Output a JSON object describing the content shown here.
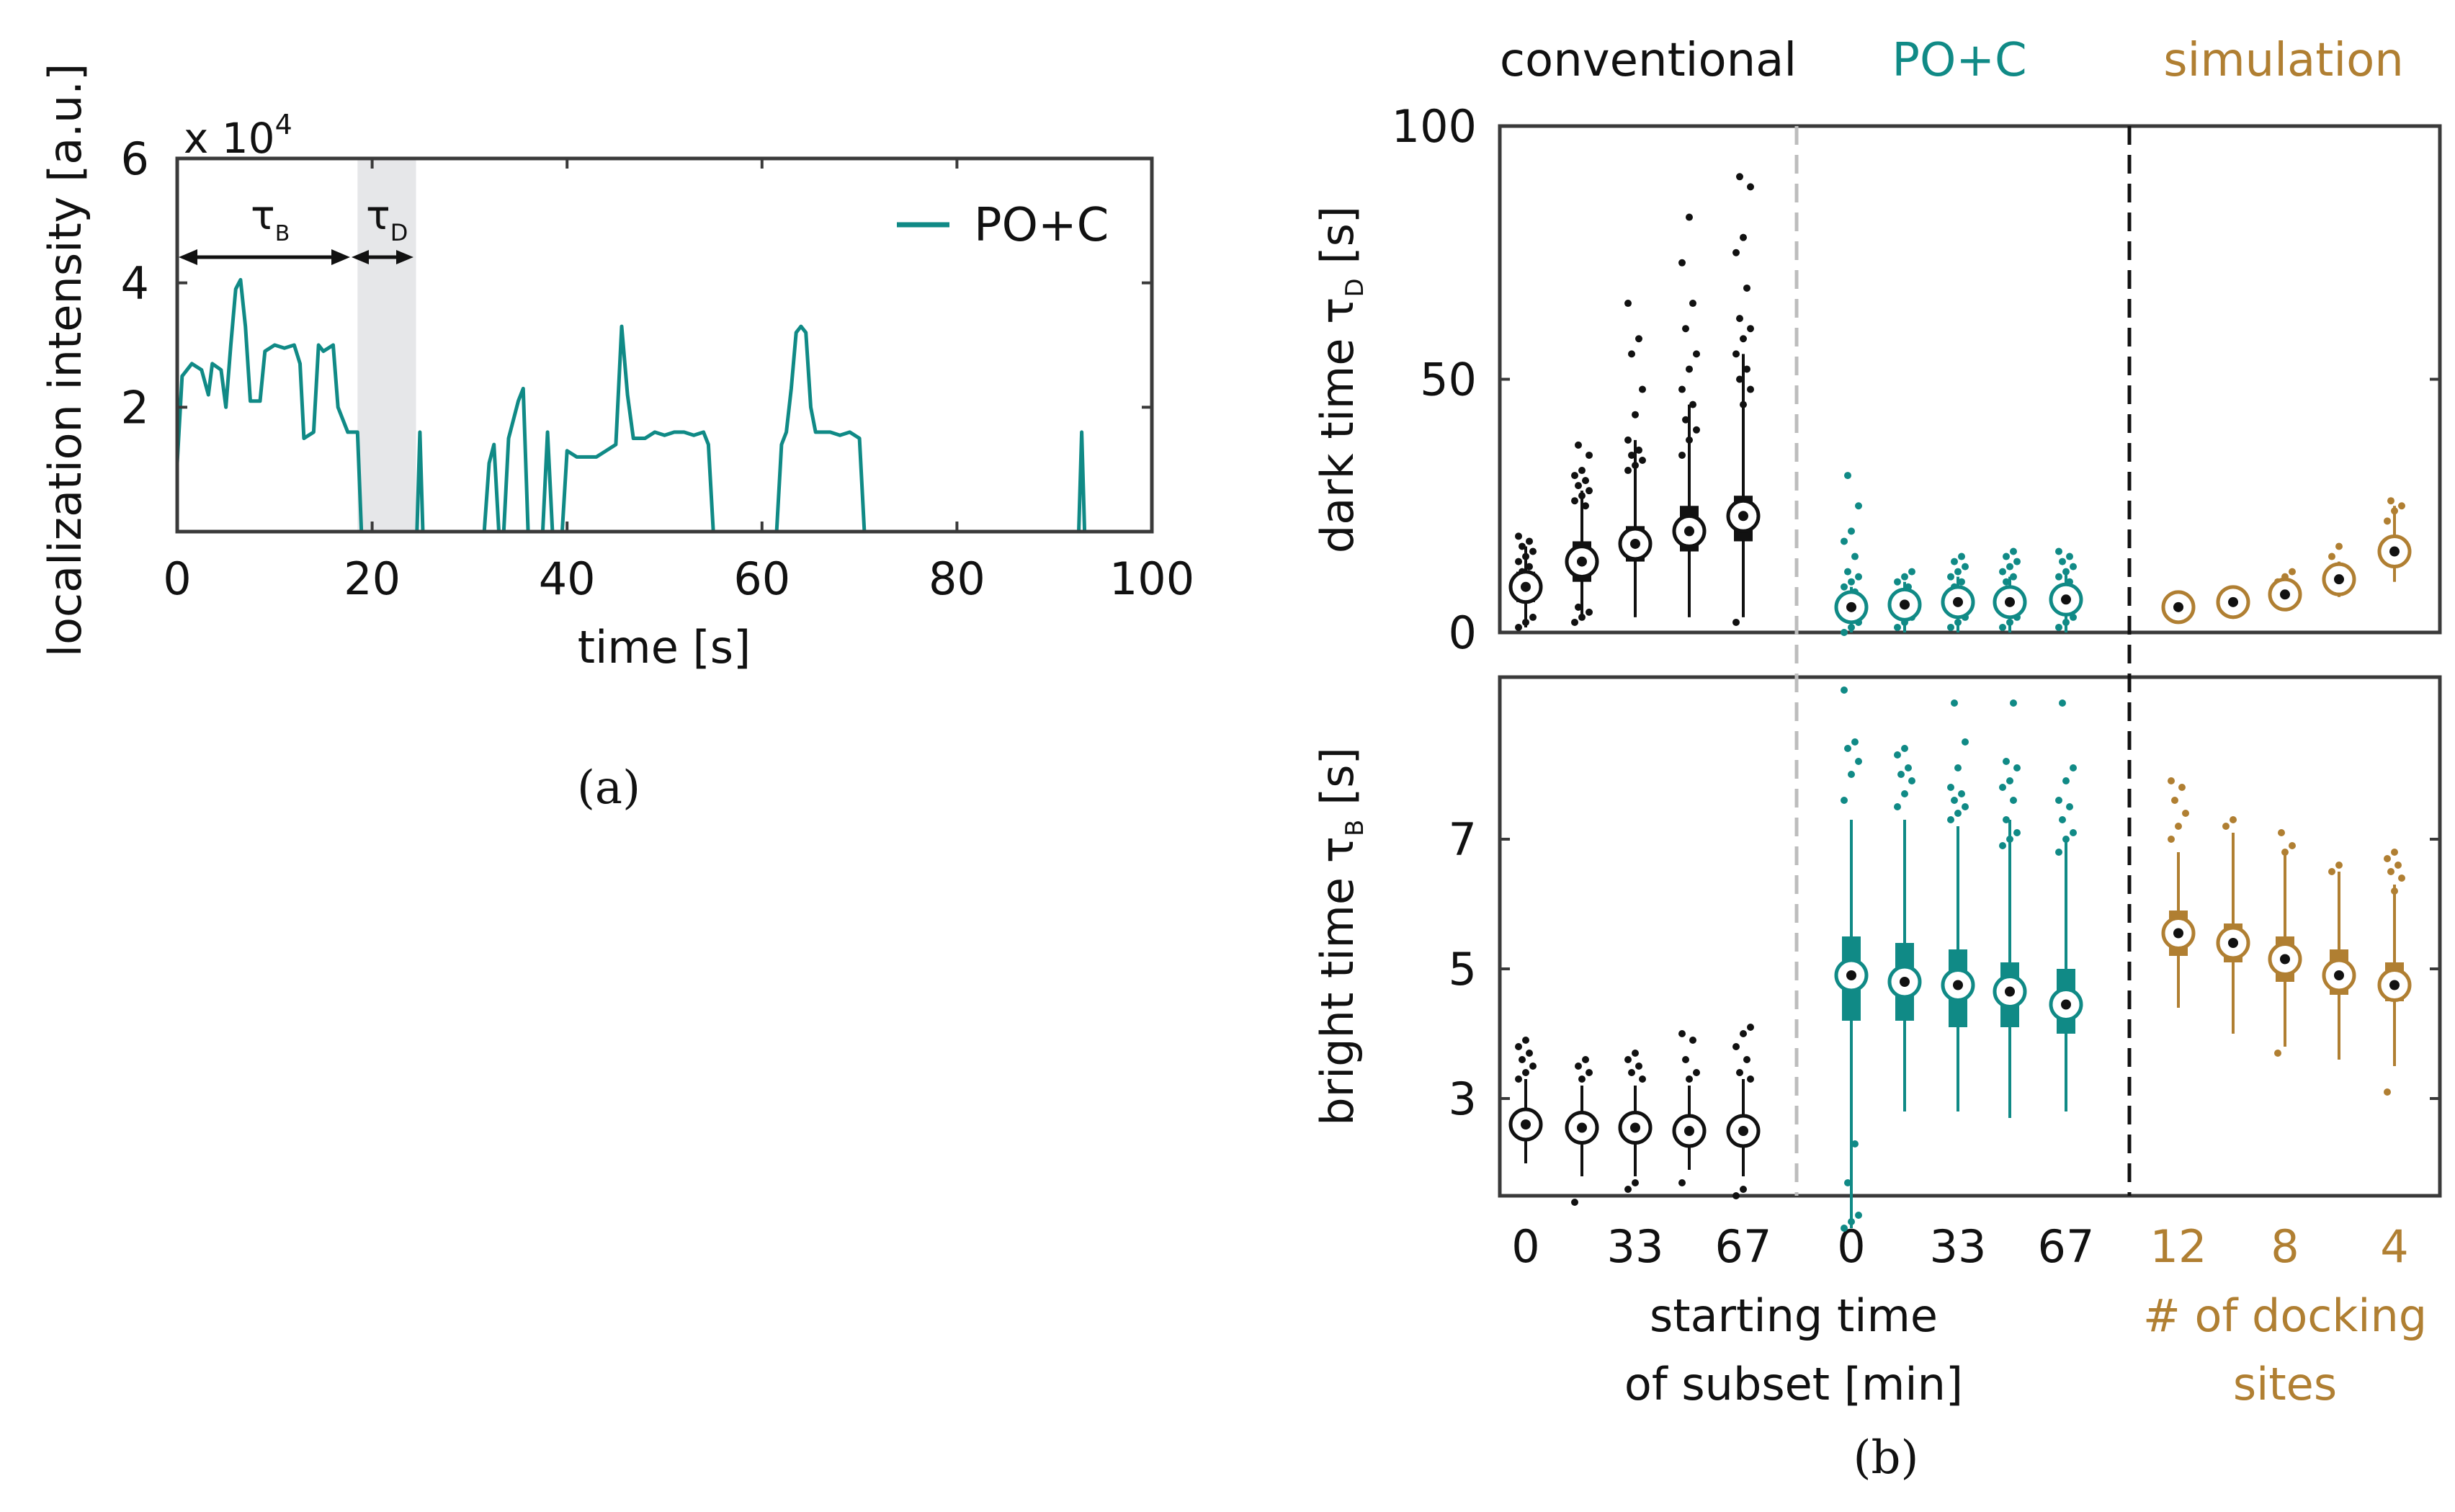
{
  "colors": {
    "teal": "#108a86",
    "black": "#111111",
    "brown": "#b07f32",
    "shade": "#e6e7e9",
    "dashed_gray": "#bdbdbd"
  },
  "panel_a": {
    "label": "(a)",
    "ylabel": "localization intensity [a.u.]",
    "xlabel": "time [s]",
    "multiplier": "x 10",
    "multiplier_exp": "4",
    "legend": "PO+C",
    "tau_b": "τ",
    "tau_b_sub": "B",
    "tau_d": "τ",
    "tau_d_sub": "D",
    "xticks": [
      "0",
      "20",
      "40",
      "60",
      "80",
      "100"
    ],
    "yticks": [
      "2",
      "4",
      "6"
    ]
  },
  "panel_b": {
    "label": "(b)",
    "header_conventional": "conventional",
    "header_poc": "PO+C",
    "header_sim": "simulation",
    "top_ylabel": "dark time τ",
    "top_ylabel_sub": "D",
    "top_ylabel_unit": " [s]",
    "top_yticks": [
      "0",
      "50",
      "100"
    ],
    "bottom_ylabel": "bright time τ",
    "bottom_ylabel_sub": "B",
    "bottom_ylabel_unit": " [s]",
    "bottom_yticks": [
      "3",
      "5",
      "7"
    ],
    "xticks_conv": [
      "0",
      "33",
      "67"
    ],
    "xticks_poc": [
      "0",
      "33",
      "67"
    ],
    "xticks_sim": [
      "12",
      "8",
      "4"
    ],
    "xlabel_line1": "starting time",
    "xlabel_line2": "of subset [min]",
    "sim_xlabel_line1": "# of docking",
    "sim_xlabel_line2": "sites"
  },
  "chart_data": [
    {
      "type": "line",
      "title": "",
      "xlabel": "time [s]",
      "ylabel": "localization intensity [a.u.]",
      "y_scale_factor": 10000,
      "xlim": [
        0,
        100
      ],
      "ylim": [
        0,
        6
      ],
      "series": [
        {
          "name": "PO+C",
          "segments": [
            [
              [
                0,
                1.1
              ],
              [
                0.5,
                2.5
              ],
              [
                1.5,
                2.7
              ],
              [
                2.5,
                2.6
              ],
              [
                3.2,
                2.2
              ],
              [
                3.6,
                2.7
              ],
              [
                4.5,
                2.6
              ],
              [
                5,
                2.0
              ],
              [
                5.5,
                3.0
              ],
              [
                6,
                3.9
              ],
              [
                6.5,
                4.05
              ],
              [
                7,
                3.3
              ],
              [
                7.5,
                2.1
              ],
              [
                8.5,
                2.1
              ],
              [
                9,
                2.9
              ],
              [
                10,
                3.0
              ],
              [
                11,
                2.95
              ],
              [
                12,
                3.0
              ],
              [
                12.6,
                2.7
              ],
              [
                13,
                1.5
              ],
              [
                14,
                1.6
              ],
              [
                14.5,
                3.0
              ],
              [
                15,
                2.9
              ],
              [
                16,
                3.0
              ],
              [
                16.5,
                2.0
              ],
              [
                17.5,
                1.6
              ],
              [
                18.5,
                1.6
              ],
              [
                18.9,
                0
              ]
            ],
            [
              [
                24.6,
                0
              ],
              [
                24.9,
                1.6
              ],
              [
                25.2,
                0
              ]
            ],
            [
              [
                31.5,
                0
              ],
              [
                32,
                1.1
              ],
              [
                32.5,
                1.4
              ],
              [
                33,
                0
              ]
            ],
            [
              [
                33.5,
                0
              ],
              [
                34,
                1.5
              ],
              [
                35,
                2.1
              ],
              [
                35.5,
                2.3
              ],
              [
                36,
                0
              ]
            ],
            [
              [
                37.5,
                0
              ],
              [
                38,
                1.6
              ],
              [
                38.5,
                0
              ]
            ],
            [
              [
                39.5,
                0
              ],
              [
                40,
                1.3
              ],
              [
                41,
                1.2
              ],
              [
                42,
                1.2
              ],
              [
                43,
                1.2
              ],
              [
                44,
                1.3
              ],
              [
                45,
                1.4
              ],
              [
                45.6,
                3.3
              ],
              [
                46.2,
                2.2
              ],
              [
                46.8,
                1.5
              ],
              [
                48,
                1.5
              ],
              [
                49,
                1.6
              ],
              [
                50,
                1.55
              ],
              [
                51,
                1.6
              ],
              [
                52,
                1.6
              ],
              [
                53,
                1.55
              ],
              [
                54,
                1.6
              ],
              [
                54.5,
                1.4
              ],
              [
                55,
                0
              ]
            ],
            [
              [
                61.5,
                0
              ],
              [
                62,
                1.4
              ],
              [
                62.5,
                1.6
              ],
              [
                63,
                2.3
              ],
              [
                63.5,
                3.2
              ],
              [
                64,
                3.3
              ],
              [
                64.5,
                3.2
              ],
              [
                65,
                2.0
              ],
              [
                65.5,
                1.6
              ],
              [
                67,
                1.6
              ],
              [
                68,
                1.55
              ],
              [
                69,
                1.6
              ],
              [
                70,
                1.5
              ],
              [
                70.5,
                0
              ]
            ],
            [
              [
                92.5,
                0
              ],
              [
                92.8,
                1.6
              ],
              [
                93.1,
                0
              ]
            ]
          ]
        }
      ],
      "annotations": {
        "shaded_region": [
          18.5,
          24.5
        ],
        "tau_b_span": [
          0,
          18.5
        ],
        "tau_d_span": [
          18.5,
          24.5
        ]
      }
    },
    {
      "type": "box",
      "title": "dark time τD [s]",
      "ylim": [
        0,
        100
      ],
      "groups": [
        {
          "name": "conventional",
          "color": "black",
          "positions": [
            "0",
            "",
            "33",
            "",
            "67"
          ],
          "median": [
            9,
            14,
            17.5,
            20,
            23
          ],
          "q1": [
            6,
            10,
            14,
            16,
            18
          ],
          "q3": [
            12,
            18,
            21,
            25,
            27
          ],
          "whisker_low": [
            1,
            3,
            3,
            3,
            3
          ],
          "whisker_high": [
            17,
            28,
            38,
            45,
            55
          ],
          "outliers": [
            [
              1,
              2,
              3,
              12,
              13,
              14,
              15,
              16,
              17,
              18,
              19
            ],
            [
              2,
              3,
              4,
              5,
              25,
              26,
              27,
              28,
              29,
              30,
              31,
              32,
              35,
              37
            ],
            [
              32,
              33,
              34,
              35,
              36,
              38,
              43,
              48,
              55,
              58,
              65
            ],
            [
              35,
              38,
              40,
              42,
              45,
              48,
              52,
              55,
              60,
              65,
              73,
              82
            ],
            [
              2,
              45,
              48,
              50,
              52,
              55,
              58,
              60,
              62,
              68,
              75,
              78,
              88,
              90
            ]
          ]
        },
        {
          "name": "PO+C",
          "color": "teal",
          "positions": [
            "0",
            "",
            "33",
            "",
            "67"
          ],
          "median": [
            5,
            5.5,
            6,
            6,
            6.5
          ],
          "q1": [
            4,
            4,
            4,
            4,
            4
          ],
          "q3": [
            6,
            7,
            7,
            7,
            8
          ],
          "whisker_low": [
            0,
            0,
            0,
            0,
            0
          ],
          "whisker_high": [
            9,
            10,
            11,
            11,
            12
          ],
          "outliers": [
            [
              0,
              1,
              2,
              3,
              8,
              9,
              10,
              11,
              12,
              15,
              18,
              20,
              25,
              31
            ],
            [
              1,
              2,
              3,
              8,
              9,
              10,
              11,
              12
            ],
            [
              1,
              2,
              3,
              9,
              10,
              11,
              12,
              13,
              14,
              15
            ],
            [
              1,
              2,
              3,
              10,
              11,
              12,
              13,
              14,
              15,
              16
            ],
            [
              1,
              2,
              3,
              9,
              10,
              11,
              12,
              13,
              14,
              15,
              16
            ]
          ]
        },
        {
          "name": "simulation",
          "color": "brown",
          "positions": [
            "12",
            "",
            "8",
            "",
            "4"
          ],
          "median": [
            5,
            6,
            7.5,
            10.5,
            16
          ],
          "q1": [
            4,
            5,
            6.5,
            9,
            14
          ],
          "q3": [
            6,
            7,
            8.5,
            12,
            18
          ],
          "whisker_low": [
            3,
            4,
            5,
            7,
            10
          ],
          "whisker_high": [
            7,
            8,
            10,
            14,
            25
          ],
          "outliers": [
            [
              6,
              6.5
            ],
            [
              7,
              7.5
            ],
            [
              10,
              11,
              12
            ],
            [
              15,
              17
            ],
            [
              22,
              24,
              25,
              26
            ]
          ]
        }
      ]
    },
    {
      "type": "box",
      "title": "bright time τB [s]",
      "ylim": [
        1.5,
        9.5
      ],
      "groups": [
        {
          "name": "conventional",
          "color": "black",
          "positions": [
            "0",
            "",
            "33",
            "",
            "67"
          ],
          "median": [
            2.6,
            2.55,
            2.55,
            2.5,
            2.5
          ],
          "q1": [
            2.4,
            2.35,
            2.35,
            2.3,
            2.3
          ],
          "q3": [
            2.8,
            2.75,
            2.75,
            2.7,
            2.7
          ],
          "whisker_low": [
            2.0,
            1.8,
            1.8,
            1.9,
            1.8
          ],
          "whisker_high": [
            3.3,
            3.2,
            3.2,
            3.2,
            3.3
          ],
          "outliers": [
            [
              3.3,
              3.4,
              3.5,
              3.6,
              3.7,
              3.8,
              3.9
            ],
            [
              1.4,
              3.3,
              3.4,
              3.5,
              3.6
            ],
            [
              1.6,
              1.7,
              3.3,
              3.4,
              3.5,
              3.6,
              3.7
            ],
            [
              1.7,
              3.3,
              3.4,
              3.6,
              3.9,
              4.0
            ],
            [
              1.5,
              1.6,
              3.3,
              3.4,
              3.6,
              3.8,
              4.0,
              4.1
            ]
          ]
        },
        {
          "name": "PO+C",
          "color": "teal",
          "positions": [
            "0",
            "",
            "33",
            "",
            "67"
          ],
          "median": [
            4.9,
            4.8,
            4.75,
            4.65,
            4.45
          ],
          "q1": [
            4.2,
            4.2,
            4.1,
            4.1,
            4.0
          ],
          "q3": [
            5.5,
            5.4,
            5.3,
            5.1,
            5.0
          ],
          "whisker_low": [
            1.0,
            2.8,
            2.8,
            2.7,
            2.8
          ],
          "whisker_high": [
            7.3,
            7.3,
            7.2,
            7.3,
            7.0
          ],
          "outliers": [
            [
              1.0,
              1.1,
              1.2,
              1.7,
              2.3,
              7.6,
              8.0,
              8.2,
              8.4,
              8.5,
              9.3
            ],
            [
              7.5,
              7.7,
              7.9,
              8.0,
              8.1,
              8.3,
              8.4
            ],
            [
              7.3,
              7.4,
              7.5,
              7.6,
              7.7,
              7.8,
              8.1,
              8.5,
              9.1
            ],
            [
              6.9,
              7.0,
              7.1,
              7.3,
              7.6,
              7.8,
              7.9,
              8.1,
              8.2,
              9.1
            ],
            [
              6.8,
              7.0,
              7.1,
              7.3,
              7.5,
              7.6,
              7.9,
              8.1,
              9.1
            ]
          ]
        },
        {
          "name": "simulation",
          "color": "brown",
          "positions": [
            "12",
            "",
            "8",
            "",
            "4"
          ],
          "median": [
            5.55,
            5.4,
            5.15,
            4.9,
            4.75
          ],
          "q1": [
            5.2,
            5.1,
            4.8,
            4.6,
            4.5
          ],
          "q3": [
            5.9,
            5.7,
            5.5,
            5.3,
            5.1
          ],
          "whisker_low": [
            4.4,
            4.0,
            3.8,
            3.6,
            3.5
          ],
          "whisker_high": [
            6.8,
            7.1,
            6.8,
            6.5,
            6.3
          ],
          "outliers": [
            [
              7.0,
              7.2,
              7.4,
              7.6,
              7.8,
              7.9
            ],
            [
              7.2,
              7.3
            ],
            [
              3.7,
              6.8,
              6.9,
              7.1
            ],
            [
              6.5,
              6.6
            ],
            [
              3.1,
              6.2,
              6.4,
              6.5,
              6.6,
              6.7,
              6.8
            ]
          ]
        }
      ]
    }
  ]
}
